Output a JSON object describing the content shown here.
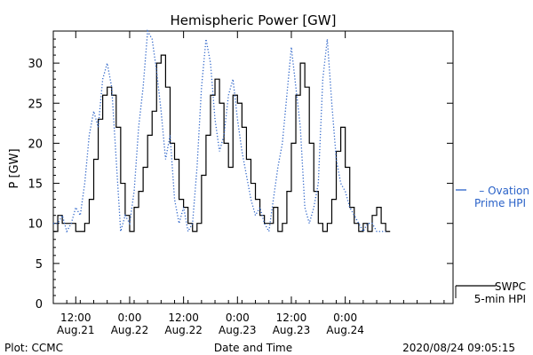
{
  "chart_data": {
    "type": "line",
    "title": "Hemispheric Power [GW]",
    "xlabel": "Date and Time",
    "ylabel": "P [GW]",
    "xlim": [
      "2020-08-21T07:00",
      "2020-08-25T00:00"
    ],
    "ylim": [
      0,
      34
    ],
    "y_ticks": [
      0,
      5,
      10,
      15,
      20,
      25,
      30
    ],
    "x_ticks": [
      {
        "time": "2020-08-21T12:00",
        "label1": "12:00",
        "label2": "Aug.21"
      },
      {
        "time": "2020-08-22T00:00",
        "label1": "0:00",
        "label2": "Aug.22"
      },
      {
        "time": "2020-08-22T12:00",
        "label1": "12:00",
        "label2": "Aug.22"
      },
      {
        "time": "2020-08-23T00:00",
        "label1": "0:00",
        "label2": "Aug.23"
      },
      {
        "time": "2020-08-23T12:00",
        "label1": "12:00",
        "label2": "Aug.23"
      },
      {
        "time": "2020-08-24T00:00",
        "label1": "0:00",
        "label2": "Aug.24"
      }
    ],
    "grid": false,
    "legend_position": "right",
    "series": [
      {
        "name": "SWPC 5-min HPI",
        "legend_lines": [
          "SWPC",
          "5-min HPI"
        ],
        "color": "#000000",
        "style": "solid-step",
        "x": [
          "2020-08-21T07:00",
          "2020-08-21T08:00",
          "2020-08-21T09:00",
          "2020-08-21T10:00",
          "2020-08-21T11:00",
          "2020-08-21T12:00",
          "2020-08-21T13:00",
          "2020-08-21T14:00",
          "2020-08-21T15:00",
          "2020-08-21T16:00",
          "2020-08-21T17:00",
          "2020-08-21T18:00",
          "2020-08-21T19:00",
          "2020-08-21T20:00",
          "2020-08-21T21:00",
          "2020-08-21T22:00",
          "2020-08-21T23:00",
          "2020-08-22T00:00",
          "2020-08-22T01:00",
          "2020-08-22T02:00",
          "2020-08-22T03:00",
          "2020-08-22T04:00",
          "2020-08-22T05:00",
          "2020-08-22T06:00",
          "2020-08-22T07:00",
          "2020-08-22T08:00",
          "2020-08-22T09:00",
          "2020-08-22T10:00",
          "2020-08-22T11:00",
          "2020-08-22T12:00",
          "2020-08-22T13:00",
          "2020-08-22T14:00",
          "2020-08-22T15:00",
          "2020-08-22T16:00",
          "2020-08-22T17:00",
          "2020-08-22T18:00",
          "2020-08-22T19:00",
          "2020-08-22T20:00",
          "2020-08-22T21:00",
          "2020-08-22T22:00",
          "2020-08-22T23:00",
          "2020-08-23T00:00",
          "2020-08-23T01:00",
          "2020-08-23T02:00",
          "2020-08-23T03:00",
          "2020-08-23T04:00",
          "2020-08-23T05:00",
          "2020-08-23T06:00",
          "2020-08-23T07:00",
          "2020-08-23T08:00",
          "2020-08-23T09:00",
          "2020-08-23T10:00",
          "2020-08-23T11:00",
          "2020-08-23T12:00",
          "2020-08-23T13:00",
          "2020-08-23T14:00",
          "2020-08-23T15:00",
          "2020-08-23T16:00",
          "2020-08-23T17:00",
          "2020-08-23T18:00",
          "2020-08-23T19:00",
          "2020-08-23T20:00",
          "2020-08-23T21:00",
          "2020-08-23T22:00",
          "2020-08-23T23:00",
          "2020-08-24T00:00",
          "2020-08-24T01:00",
          "2020-08-24T02:00",
          "2020-08-24T03:00",
          "2020-08-24T04:00",
          "2020-08-24T05:00",
          "2020-08-24T06:00",
          "2020-08-24T07:00",
          "2020-08-24T08:00",
          "2020-08-24T09:00"
        ],
        "y": [
          9,
          11,
          10,
          10,
          10,
          9,
          9,
          10,
          13,
          18,
          23,
          26,
          27,
          26,
          22,
          15,
          11,
          9,
          12,
          14,
          17,
          21,
          24,
          30,
          31,
          27,
          20,
          18,
          13,
          12,
          10,
          9,
          10,
          16,
          21,
          26,
          28,
          25,
          20,
          17,
          26,
          25,
          22,
          18,
          15,
          13,
          11,
          10,
          10,
          12,
          9,
          10,
          14,
          20,
          26,
          30,
          27,
          20,
          14,
          10,
          9,
          10,
          13,
          19,
          22,
          17,
          12,
          10,
          9,
          10,
          9,
          11,
          12,
          10,
          9
        ]
      },
      {
        "name": "Ovation Prime HPI",
        "legend_lines": [
          "Ovation",
          "Prime HPI"
        ],
        "color": "#2a62c8",
        "style": "dotted",
        "x": [
          "2020-08-21T07:00",
          "2020-08-21T08:00",
          "2020-08-21T09:00",
          "2020-08-21T10:00",
          "2020-08-21T11:00",
          "2020-08-21T12:00",
          "2020-08-21T13:00",
          "2020-08-21T14:00",
          "2020-08-21T15:00",
          "2020-08-21T16:00",
          "2020-08-21T17:00",
          "2020-08-21T18:00",
          "2020-08-21T19:00",
          "2020-08-21T20:00",
          "2020-08-21T21:00",
          "2020-08-21T22:00",
          "2020-08-21T23:00",
          "2020-08-22T00:00",
          "2020-08-22T01:00",
          "2020-08-22T02:00",
          "2020-08-22T03:00",
          "2020-08-22T04:00",
          "2020-08-22T05:00",
          "2020-08-22T06:00",
          "2020-08-22T07:00",
          "2020-08-22T08:00",
          "2020-08-22T09:00",
          "2020-08-22T10:00",
          "2020-08-22T11:00",
          "2020-08-22T12:00",
          "2020-08-22T13:00",
          "2020-08-22T14:00",
          "2020-08-22T15:00",
          "2020-08-22T16:00",
          "2020-08-22T17:00",
          "2020-08-22T18:00",
          "2020-08-22T19:00",
          "2020-08-22T20:00",
          "2020-08-22T21:00",
          "2020-08-22T22:00",
          "2020-08-22T23:00",
          "2020-08-23T00:00",
          "2020-08-23T01:00",
          "2020-08-23T02:00",
          "2020-08-23T03:00",
          "2020-08-23T04:00",
          "2020-08-23T05:00",
          "2020-08-23T06:00",
          "2020-08-23T07:00",
          "2020-08-23T08:00",
          "2020-08-23T09:00",
          "2020-08-23T10:00",
          "2020-08-23T11:00",
          "2020-08-23T12:00",
          "2020-08-23T13:00",
          "2020-08-23T14:00",
          "2020-08-23T15:00",
          "2020-08-23T16:00",
          "2020-08-23T17:00",
          "2020-08-23T18:00",
          "2020-08-23T19:00",
          "2020-08-23T20:00",
          "2020-08-23T21:00",
          "2020-08-23T22:00",
          "2020-08-23T23:00",
          "2020-08-24T00:00",
          "2020-08-24T01:00",
          "2020-08-24T02:00",
          "2020-08-24T03:00",
          "2020-08-24T04:00",
          "2020-08-24T05:00",
          "2020-08-24T06:00",
          "2020-08-24T07:00",
          "2020-08-24T08:00",
          "2020-08-24T09:00"
        ],
        "y": [
          10,
          10,
          11,
          9,
          10,
          12,
          11,
          15,
          21,
          24,
          22,
          28,
          30,
          27,
          18,
          9,
          11,
          10,
          14,
          22,
          27,
          34,
          33,
          29,
          24,
          18,
          21,
          13,
          10,
          12,
          9,
          10,
          17,
          27,
          33,
          30,
          23,
          19,
          21,
          26,
          28,
          23,
          19,
          16,
          13,
          11,
          12,
          10,
          9,
          13,
          17,
          20,
          26,
          32,
          27,
          22,
          12,
          10,
          12,
          15,
          28,
          33,
          25,
          18,
          15,
          14,
          12,
          11,
          10,
          9,
          10,
          10,
          9,
          9,
          9
        ]
      }
    ]
  },
  "plot_credit": "Plot: CCMC",
  "timestamp": "2020/08/24 09:05:15"
}
